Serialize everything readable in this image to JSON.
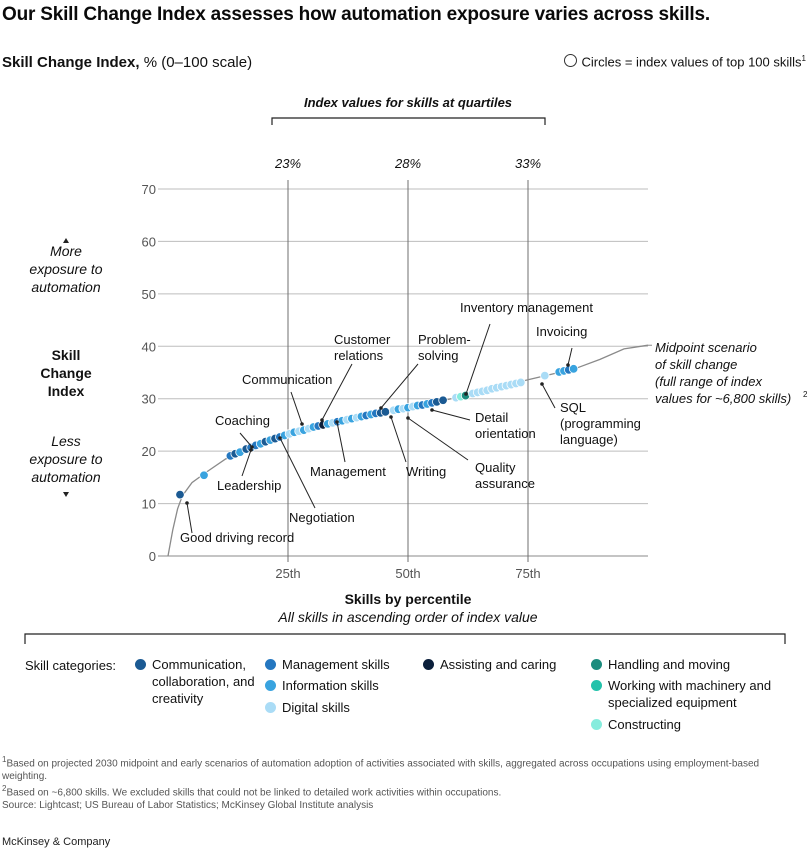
{
  "title": "Our Skill Change Index assesses how automation exposure varies across skills.",
  "subtitle": {
    "bold": "Skill Change Index,",
    "rest": " % (0–100 scale)"
  },
  "legend_note": {
    "text": "Circles = index values of top 100 skills",
    "sup": "1"
  },
  "chart_data": {
    "type": "scatter",
    "title": "Our Skill Change Index assesses how automation exposure varies across skills.",
    "ylabel": "Skill Change Index",
    "ylabel_upper": "More exposure to automation",
    "ylabel_lower": "Less exposure to automation",
    "xlabel": "Skills by percentile",
    "xsublabel": "All skills in ascending order of index value",
    "ylim": [
      0,
      70
    ],
    "xlim": [
      0,
      100
    ],
    "yticks": [
      0,
      10,
      20,
      30,
      40,
      50,
      60,
      70
    ],
    "xticks": [
      {
        "x": 25,
        "label": "25th"
      },
      {
        "x": 50,
        "label": "50th"
      },
      {
        "x": 75,
        "label": "75th"
      }
    ],
    "grid": true,
    "quartiles_title": "Index values for skills at quartiles",
    "quartiles": [
      {
        "x": 25,
        "label": "23%"
      },
      {
        "x": 50,
        "label": "28%"
      },
      {
        "x": 75,
        "label": "33%"
      }
    ],
    "curve_label": "Midpoint scenario of skill change (full range of index values for ~6,800 skills)",
    "curve_label_sup": "2",
    "curve": [
      [
        0,
        0
      ],
      [
        1,
        5
      ],
      [
        2,
        9
      ],
      [
        3,
        11.5
      ],
      [
        5,
        14
      ],
      [
        8,
        16
      ],
      [
        12,
        18.5
      ],
      [
        15,
        19.8
      ],
      [
        20,
        21.7
      ],
      [
        25,
        23.2
      ],
      [
        30,
        24.5
      ],
      [
        35,
        25.6
      ],
      [
        40,
        26.6
      ],
      [
        45,
        27.5
      ],
      [
        50,
        28.3
      ],
      [
        55,
        29.2
      ],
      [
        60,
        30.2
      ],
      [
        65,
        31.3
      ],
      [
        70,
        32.5
      ],
      [
        75,
        33.6
      ],
      [
        80,
        34.7
      ],
      [
        85,
        35.8
      ],
      [
        90,
        37.5
      ],
      [
        95,
        39.5
      ],
      [
        100,
        40.2
      ]
    ],
    "categories": [
      {
        "key": "comm",
        "name": "Communication, collaboration, and creativity",
        "color": "#1b5a93"
      },
      {
        "key": "mgmt",
        "name": "Management skills",
        "color": "#2477c0"
      },
      {
        "key": "info",
        "name": "Information skills",
        "color": "#39a3df"
      },
      {
        "key": "digi",
        "name": "Digital skills",
        "color": "#aadcf6"
      },
      {
        "key": "care",
        "name": "Assisting and caring",
        "color": "#0b1f3b"
      },
      {
        "key": "hand",
        "name": "Handling and moving",
        "color": "#1c8c7e"
      },
      {
        "key": "mach",
        "name": "Working with machinery and specialized equipment",
        "color": "#23c2ab"
      },
      {
        "key": "cons",
        "name": "Constructing",
        "color": "#86ecdd"
      }
    ],
    "points": [
      {
        "x": 2.5,
        "y": 11.7,
        "cat": "comm"
      },
      {
        "x": 7.5,
        "y": 15.4,
        "cat": "info"
      },
      {
        "x": 13,
        "y": 19.1,
        "cat": "mgmt"
      },
      {
        "x": 14,
        "y": 19.5,
        "cat": "comm"
      },
      {
        "x": 15,
        "y": 19.8,
        "cat": "info"
      },
      {
        "x": 16.3,
        "y": 20.4,
        "cat": "comm"
      },
      {
        "x": 17.3,
        "y": 20.7,
        "cat": "mgmt"
      },
      {
        "x": 18.3,
        "y": 21.1,
        "cat": "mgmt"
      },
      {
        "x": 19.3,
        "y": 21.4,
        "cat": "info"
      },
      {
        "x": 20.3,
        "y": 21.8,
        "cat": "comm"
      },
      {
        "x": 21.3,
        "y": 22.1,
        "cat": "info"
      },
      {
        "x": 22.3,
        "y": 22.4,
        "cat": "comm"
      },
      {
        "x": 23.3,
        "y": 22.7,
        "cat": "mgmt"
      },
      {
        "x": 24.3,
        "y": 23.0,
        "cat": "info"
      },
      {
        "x": 25.3,
        "y": 23.3,
        "cat": "digi"
      },
      {
        "x": 26.3,
        "y": 23.6,
        "cat": "info"
      },
      {
        "x": 27.3,
        "y": 23.8,
        "cat": "digi"
      },
      {
        "x": 28.3,
        "y": 24.0,
        "cat": "info"
      },
      {
        "x": 29.3,
        "y": 24.3,
        "cat": "digi"
      },
      {
        "x": 30.3,
        "y": 24.6,
        "cat": "info"
      },
      {
        "x": 31.3,
        "y": 24.8,
        "cat": "mgmt"
      },
      {
        "x": 32.3,
        "y": 25.0,
        "cat": "care"
      },
      {
        "x": 33.3,
        "y": 25.2,
        "cat": "info"
      },
      {
        "x": 34.3,
        "y": 25.4,
        "cat": "digi"
      },
      {
        "x": 35.3,
        "y": 25.6,
        "cat": "mgmt"
      },
      {
        "x": 36.3,
        "y": 25.8,
        "cat": "info"
      },
      {
        "x": 37.3,
        "y": 26.0,
        "cat": "digi"
      },
      {
        "x": 38.3,
        "y": 26.2,
        "cat": "info"
      },
      {
        "x": 39.3,
        "y": 26.4,
        "cat": "digi"
      },
      {
        "x": 40.3,
        "y": 26.6,
        "cat": "info"
      },
      {
        "x": 41.3,
        "y": 26.8,
        "cat": "mgmt"
      },
      {
        "x": 42.3,
        "y": 27.0,
        "cat": "info"
      },
      {
        "x": 43.3,
        "y": 27.2,
        "cat": "mgmt"
      },
      {
        "x": 44.3,
        "y": 27.3,
        "cat": "comm"
      },
      {
        "x": 45.3,
        "y": 27.5,
        "cat": "comm"
      },
      {
        "x": 47,
        "y": 27.8,
        "cat": "digi"
      },
      {
        "x": 48,
        "y": 28.0,
        "cat": "info"
      },
      {
        "x": 49,
        "y": 28.1,
        "cat": "digi"
      },
      {
        "x": 50,
        "y": 28.3,
        "cat": "info"
      },
      {
        "x": 51,
        "y": 28.5,
        "cat": "digi"
      },
      {
        "x": 52,
        "y": 28.7,
        "cat": "info"
      },
      {
        "x": 53,
        "y": 28.8,
        "cat": "mgmt"
      },
      {
        "x": 54,
        "y": 29.0,
        "cat": "info"
      },
      {
        "x": 55,
        "y": 29.2,
        "cat": "mgmt"
      },
      {
        "x": 56,
        "y": 29.4,
        "cat": "comm"
      },
      {
        "x": 57.3,
        "y": 29.7,
        "cat": "comm"
      },
      {
        "x": 60,
        "y": 30.2,
        "cat": "digi"
      },
      {
        "x": 61,
        "y": 30.4,
        "cat": "cons"
      },
      {
        "x": 62,
        "y": 30.6,
        "cat": "hand"
      },
      {
        "x": 63.5,
        "y": 31.0,
        "cat": "digi"
      },
      {
        "x": 64.5,
        "y": 31.2,
        "cat": "digi"
      },
      {
        "x": 65.5,
        "y": 31.4,
        "cat": "digi"
      },
      {
        "x": 66.5,
        "y": 31.6,
        "cat": "digi"
      },
      {
        "x": 67.5,
        "y": 31.9,
        "cat": "digi"
      },
      {
        "x": 68.5,
        "y": 32.1,
        "cat": "digi"
      },
      {
        "x": 69.5,
        "y": 32.3,
        "cat": "digi"
      },
      {
        "x": 70.5,
        "y": 32.5,
        "cat": "digi"
      },
      {
        "x": 71.5,
        "y": 32.7,
        "cat": "digi"
      },
      {
        "x": 72.5,
        "y": 32.9,
        "cat": "digi"
      },
      {
        "x": 73.5,
        "y": 33.1,
        "cat": "digi"
      },
      {
        "x": 78.5,
        "y": 34.4,
        "cat": "digi"
      },
      {
        "x": 81.5,
        "y": 35.1,
        "cat": "info"
      },
      {
        "x": 82.5,
        "y": 35.3,
        "cat": "info"
      },
      {
        "x": 83.5,
        "y": 35.5,
        "cat": "mgmt"
      },
      {
        "x": 84.5,
        "y": 35.7,
        "cat": "info"
      }
    ],
    "annotations": [
      {
        "text": [
          "Good driving record"
        ],
        "anchor_x": 2.5,
        "anchor_y": 11.7
      },
      {
        "text": [
          "Leadership"
        ],
        "anchor_x": 13,
        "anchor_y": 19.1
      },
      {
        "text": [
          "Coaching"
        ],
        "anchor_x": 16.3,
        "anchor_y": 20.4
      },
      {
        "text": [
          "Negotiation"
        ],
        "anchor_x": 22.3,
        "anchor_y": 22.4
      },
      {
        "text": [
          "Communication"
        ],
        "anchor_x": 26.3,
        "anchor_y": 23.6
      },
      {
        "text": [
          "Customer",
          "relations"
        ],
        "anchor_x": 32.3,
        "anchor_y": 25.0
      },
      {
        "text": [
          "Management"
        ],
        "anchor_x": 35.3,
        "anchor_y": 25.6
      },
      {
        "text": [
          "Problem-",
          "solving"
        ],
        "anchor_x": 44.3,
        "anchor_y": 27.3
      },
      {
        "text": [
          "Writing"
        ],
        "anchor_x": 45.3,
        "anchor_y": 27.5
      },
      {
        "text": [
          "Quality",
          "assurance"
        ],
        "anchor_x": 53,
        "anchor_y": 28.8
      },
      {
        "text": [
          "Detail",
          "orientation"
        ],
        "anchor_x": 56,
        "anchor_y": 29.4
      },
      {
        "text": [
          "Inventory management"
        ],
        "anchor_x": 62,
        "anchor_y": 30.6
      },
      {
        "text": [
          "Invoicing"
        ],
        "anchor_x": 83.5,
        "anchor_y": 35.5
      },
      {
        "text": [
          "SQL",
          "(programming",
          "language)"
        ],
        "anchor_x": 78.5,
        "anchor_y": 34.4
      }
    ]
  },
  "category_legend_label": "Skill categories:",
  "footnotes": [
    {
      "sup": "1",
      "text": "Based on projected 2030 midpoint and early scenarios of automation adoption of activities associated with skills, aggregated across occupations using employment-based weighting."
    },
    {
      "sup": "2",
      "text": "Based on ~6,800 skills. We excluded skills that could not be linked to detailed work activities within occupations."
    },
    {
      "sup": "",
      "text": "Source: Lightcast; US Bureau of Labor Statistics; McKinsey Global Institute analysis"
    }
  ],
  "brand": "McKinsey & Company"
}
